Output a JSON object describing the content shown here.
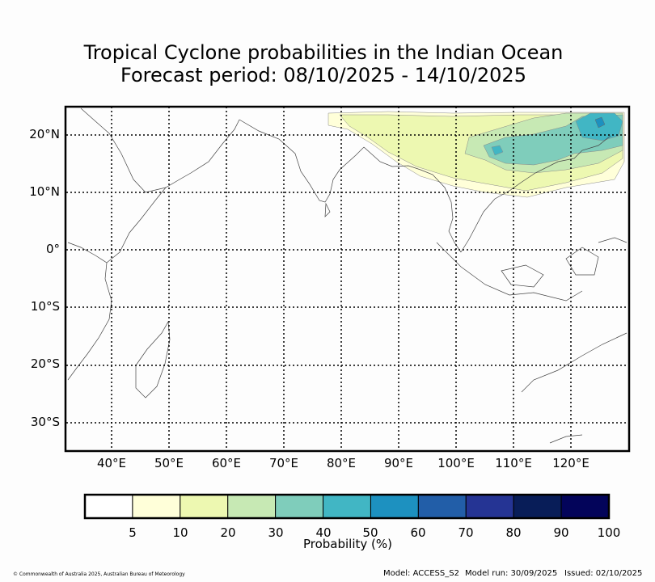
{
  "title": {
    "line1": "Tropical Cyclone probabilities in the Indian Ocean",
    "line2": "Forecast period: 08/10/2025 - 14/10/2025"
  },
  "map": {
    "lat_labels": [
      "20°N",
      "10°N",
      "0°",
      "10°S",
      "20°S",
      "30°S"
    ],
    "lon_labels": [
      "40°E",
      "50°E",
      "60°E",
      "70°E",
      "80°E",
      "90°E",
      "100°E",
      "110°E",
      "120°E"
    ],
    "lon_range": [
      32,
      130
    ],
    "lat_range": [
      -35,
      25
    ]
  },
  "legend": {
    "title": "Probability (%)",
    "ticks": [
      "5",
      "10",
      "20",
      "30",
      "40",
      "50",
      "60",
      "70",
      "80",
      "90",
      "100"
    ],
    "colors": [
      "#ffffff",
      "#ffffd9",
      "#edf8b1",
      "#c7e9b4",
      "#7fcdbb",
      "#41b6c4",
      "#1d91c0",
      "#225ea8",
      "#253494",
      "#081d58",
      "#03045a"
    ]
  },
  "footer": {
    "copyright": "© Commonwealth of Australia 2025, Australian Bureau of Meteorology",
    "model": "Model: ACCESS_S2",
    "run": "Model run: 30/09/2025",
    "issued": "Issued: 02/10/2025"
  }
}
